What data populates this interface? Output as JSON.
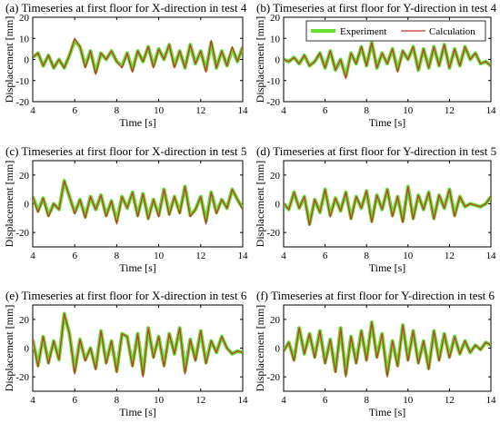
{
  "figure": {
    "legend": {
      "experiment_label": "Experiment",
      "calculation_label": "Calculation",
      "experiment_color": "#66e033",
      "calculation_color": "#c0392b"
    }
  },
  "chart_data": [
    {
      "type": "line",
      "title": "(a) Timeseries at first floor for X-direction in test 4",
      "xlabel": "Time [s]",
      "ylabel": "Displacement [mm]",
      "xlim": [
        4,
        14
      ],
      "ylim": [
        -20,
        20
      ],
      "xticks": [
        4,
        6,
        8,
        10,
        12,
        14
      ],
      "yticks": [
        -20,
        -10,
        0,
        10,
        20
      ],
      "legend_position": "none",
      "x": [
        4,
        4.25,
        4.5,
        4.75,
        5,
        5.25,
        5.5,
        5.75,
        6,
        6.25,
        6.5,
        6.75,
        7,
        7.25,
        7.5,
        7.75,
        8,
        8.25,
        8.5,
        8.75,
        9,
        9.25,
        9.5,
        9.75,
        10,
        10.25,
        10.5,
        10.75,
        11,
        11.25,
        11.5,
        11.75,
        12,
        12.25,
        12.5,
        12.75,
        13,
        13.25,
        13.5,
        13.75,
        14
      ],
      "series": [
        {
          "name": "Experiment",
          "values": [
            1,
            3,
            -3,
            2,
            -4,
            0,
            -4,
            2,
            9,
            6,
            -3,
            4,
            -6,
            3,
            0,
            4,
            -1,
            -3,
            3,
            -5,
            4,
            -1,
            6,
            -3,
            5,
            0,
            7,
            -3,
            4,
            -4,
            7,
            -2,
            4,
            -5,
            8,
            -4,
            4,
            -3,
            5,
            -1,
            6
          ]
        },
        {
          "name": "Calculation",
          "values": [
            1,
            3,
            -3,
            2,
            -4,
            0,
            -4,
            2,
            10,
            6,
            -4,
            4,
            -7,
            3,
            0,
            4,
            -1,
            -4,
            3,
            -6,
            4,
            -1,
            6,
            -4,
            5,
            0,
            7,
            -4,
            4,
            -4,
            7,
            -2,
            4,
            -6,
            9,
            -4,
            4,
            -3,
            6,
            -1,
            6
          ]
        }
      ]
    },
    {
      "type": "line",
      "title": "(b) Timeseries at first floor for Y-direction in test 4",
      "xlabel": "Time [s]",
      "ylabel": "Displacement [mm]",
      "xlim": [
        4,
        14
      ],
      "ylim": [
        -20,
        20
      ],
      "xticks": [
        4,
        6,
        8,
        10,
        12,
        14
      ],
      "yticks": [
        -20,
        -10,
        0,
        10,
        20
      ],
      "legend_position": "top-right",
      "x": [
        4,
        4.25,
        4.5,
        4.75,
        5,
        5.25,
        5.5,
        5.75,
        6,
        6.25,
        6.5,
        6.75,
        7,
        7.25,
        7.5,
        7.75,
        8,
        8.25,
        8.5,
        8.75,
        9,
        9.25,
        9.5,
        9.75,
        10,
        10.25,
        10.5,
        10.75,
        11,
        11.25,
        11.5,
        11.75,
        12,
        12.25,
        12.5,
        12.75,
        13,
        13.25,
        13.5,
        13.75,
        14
      ],
      "series": [
        {
          "name": "Experiment",
          "values": [
            0,
            -1,
            1,
            -2,
            2,
            -3,
            -1,
            3,
            -4,
            4,
            -5,
            0,
            -8,
            3,
            -2,
            6,
            -3,
            8,
            -4,
            3,
            -2,
            5,
            -5,
            4,
            0,
            6,
            -5,
            5,
            -4,
            6,
            -3,
            7,
            -4,
            5,
            -3,
            6,
            0,
            3,
            -2,
            -1,
            -3
          ]
        },
        {
          "name": "Calculation",
          "values": [
            0,
            -1,
            1,
            -2,
            2,
            -3,
            -1,
            3,
            -4,
            4,
            -5,
            0,
            -9,
            3,
            -2,
            6,
            -3,
            8,
            -4,
            3,
            -2,
            5,
            -6,
            4,
            0,
            6,
            -5,
            5,
            -4,
            6,
            -3,
            7,
            -4,
            5,
            -3,
            6,
            0,
            3,
            -2,
            -1,
            -3
          ]
        }
      ]
    },
    {
      "type": "line",
      "title": "(c) Timeseries at first floor for X-direction in test 5",
      "xlabel": "Time [s]",
      "ylabel": "Displacement [mm]",
      "xlim": [
        4,
        14
      ],
      "ylim": [
        -30,
        30
      ],
      "xticks": [
        4,
        6,
        8,
        10,
        12,
        14
      ],
      "yticks": [
        -20,
        0,
        20
      ],
      "legend_position": "none",
      "x": [
        4,
        4.25,
        4.5,
        4.75,
        5,
        5.25,
        5.5,
        5.75,
        6,
        6.25,
        6.5,
        6.75,
        7,
        7.25,
        7.5,
        7.75,
        8,
        8.25,
        8.5,
        8.75,
        9,
        9.25,
        9.5,
        9.75,
        10,
        10.25,
        10.5,
        10.75,
        11,
        11.25,
        11.5,
        11.75,
        12,
        12.25,
        12.5,
        12.75,
        13,
        13.25,
        13.5,
        13.75,
        14
      ],
      "series": [
        {
          "name": "Experiment",
          "values": [
            5,
            -5,
            4,
            -8,
            0,
            -4,
            16,
            5,
            -6,
            3,
            -9,
            5,
            -4,
            6,
            -8,
            2,
            -12,
            5,
            -3,
            8,
            -8,
            7,
            -10,
            3,
            -8,
            10,
            -7,
            5,
            -6,
            12,
            -8,
            -4,
            5,
            -12,
            8,
            -6,
            3,
            -3,
            10,
            3,
            -3
          ]
        },
        {
          "name": "Calculation",
          "values": [
            5,
            -6,
            4,
            -9,
            0,
            -4,
            16,
            5,
            -7,
            3,
            -10,
            5,
            -4,
            6,
            -9,
            2,
            -14,
            5,
            -3,
            8,
            -9,
            7,
            -11,
            3,
            -9,
            10,
            -8,
            5,
            -7,
            12,
            -9,
            -4,
            5,
            -14,
            8,
            -7,
            3,
            -3,
            10,
            3,
            -4
          ]
        }
      ]
    },
    {
      "type": "line",
      "title": "(d) Timeseries at first floor for Y-direction in test 5",
      "xlabel": "Time [s]",
      "ylabel": "Displacement [mm]",
      "xlim": [
        4,
        14
      ],
      "ylim": [
        -30,
        30
      ],
      "xticks": [
        4,
        6,
        8,
        10,
        12,
        14
      ],
      "yticks": [
        -20,
        0,
        20
      ],
      "legend_position": "none",
      "x": [
        4,
        4.25,
        4.5,
        4.75,
        5,
        5.25,
        5.5,
        5.75,
        6,
        6.25,
        6.5,
        6.75,
        7,
        7.25,
        7.5,
        7.75,
        8,
        8.25,
        8.5,
        8.75,
        9,
        9.25,
        9.5,
        9.75,
        10,
        10.25,
        10.5,
        10.75,
        11,
        11.25,
        11.5,
        11.75,
        12,
        12.25,
        12.5,
        12.75,
        13,
        13.25,
        13.5,
        13.75,
        14
      ],
      "series": [
        {
          "name": "Experiment",
          "values": [
            0,
            -4,
            8,
            -3,
            5,
            -14,
            3,
            -6,
            10,
            -8,
            4,
            -5,
            8,
            -10,
            5,
            -3,
            9,
            -12,
            6,
            -4,
            10,
            -8,
            5,
            -12,
            12,
            -10,
            6,
            -4,
            8,
            -10,
            6,
            -3,
            10,
            -8,
            5,
            -2,
            0,
            -1,
            -2,
            0,
            5
          ]
        },
        {
          "name": "Calculation",
          "values": [
            0,
            -4,
            8,
            -3,
            5,
            -15,
            3,
            -6,
            10,
            -9,
            4,
            -5,
            8,
            -11,
            5,
            -3,
            9,
            -13,
            6,
            -4,
            10,
            -9,
            5,
            -13,
            12,
            -11,
            6,
            -4,
            8,
            -11,
            6,
            -3,
            10,
            -9,
            5,
            -2,
            0,
            -1,
            -2,
            0,
            5
          ]
        }
      ]
    },
    {
      "type": "line",
      "title": "(e) Timeseries at first floor for X-direction in test 6",
      "xlabel": "Time [s]",
      "ylabel": "Displacement [mm]",
      "xlim": [
        4,
        14
      ],
      "ylim": [
        -30,
        30
      ],
      "xticks": [
        4,
        6,
        8,
        10,
        12,
        14
      ],
      "yticks": [
        -20,
        0,
        20
      ],
      "legend_position": "none",
      "x": [
        4,
        4.25,
        4.5,
        4.75,
        5,
        5.25,
        5.5,
        5.75,
        6,
        6.25,
        6.5,
        6.75,
        7,
        7.25,
        7.5,
        7.75,
        8,
        8.25,
        8.5,
        8.75,
        9,
        9.25,
        9.5,
        9.75,
        10,
        10.25,
        10.5,
        10.75,
        11,
        11.25,
        11.5,
        11.75,
        12,
        12.25,
        12.5,
        12.75,
        13,
        13.25,
        13.5,
        13.75,
        14
      ],
      "series": [
        {
          "name": "Experiment",
          "values": [
            6,
            -12,
            8,
            -10,
            5,
            -8,
            24,
            10,
            -16,
            6,
            -8,
            0,
            -14,
            12,
            -10,
            5,
            -16,
            10,
            8,
            -12,
            10,
            -18,
            14,
            -6,
            8,
            -12,
            10,
            -4,
            14,
            -16,
            6,
            -8,
            12,
            -10,
            5,
            -3,
            8,
            0,
            -4,
            -2,
            -3
          ]
        },
        {
          "name": "Calculation",
          "values": [
            6,
            -13,
            8,
            -11,
            5,
            -8,
            24,
            10,
            -18,
            6,
            -9,
            0,
            -15,
            12,
            -11,
            5,
            -17,
            10,
            8,
            -13,
            10,
            -20,
            14,
            -7,
            8,
            -13,
            10,
            -4,
            14,
            -18,
            6,
            -9,
            12,
            -11,
            5,
            -3,
            8,
            0,
            -4,
            -2,
            -3
          ]
        }
      ]
    },
    {
      "type": "line",
      "title": "(f) Timeseries at first floor for Y-direction in test 6",
      "xlabel": "Time [s]",
      "ylabel": "Displacement [mm]",
      "xlim": [
        4,
        14
      ],
      "ylim": [
        -30,
        30
      ],
      "xticks": [
        4,
        6,
        8,
        10,
        12,
        14
      ],
      "yticks": [
        -20,
        0,
        20
      ],
      "legend_position": "none",
      "x": [
        4,
        4.25,
        4.5,
        4.75,
        5,
        5.25,
        5.5,
        5.75,
        6,
        6.25,
        6.5,
        6.75,
        7,
        7.25,
        7.5,
        7.75,
        8,
        8.25,
        8.5,
        8.75,
        9,
        9.25,
        9.5,
        9.75,
        10,
        10.25,
        10.5,
        10.75,
        11,
        11.25,
        11.5,
        11.75,
        12,
        12.25,
        12.5,
        12.75,
        13,
        13.25,
        13.5,
        13.75,
        14
      ],
      "series": [
        {
          "name": "Experiment",
          "values": [
            -2,
            4,
            -8,
            14,
            -4,
            10,
            -6,
            12,
            -10,
            6,
            -16,
            14,
            -18,
            8,
            -10,
            12,
            -8,
            18,
            -6,
            10,
            -18,
            5,
            -12,
            16,
            -8,
            12,
            -10,
            5,
            -14,
            12,
            -8,
            10,
            -6,
            8,
            -4,
            5,
            -3,
            2,
            -1,
            4,
            2
          ]
        },
        {
          "name": "Calculation",
          "values": [
            -2,
            4,
            -9,
            14,
            -4,
            10,
            -7,
            12,
            -11,
            6,
            -17,
            14,
            -20,
            8,
            -11,
            12,
            -9,
            18,
            -7,
            10,
            -20,
            5,
            -13,
            16,
            -9,
            12,
            -11,
            5,
            -15,
            12,
            -9,
            10,
            -7,
            8,
            -4,
            5,
            -3,
            2,
            -1,
            4,
            2
          ]
        }
      ]
    }
  ]
}
